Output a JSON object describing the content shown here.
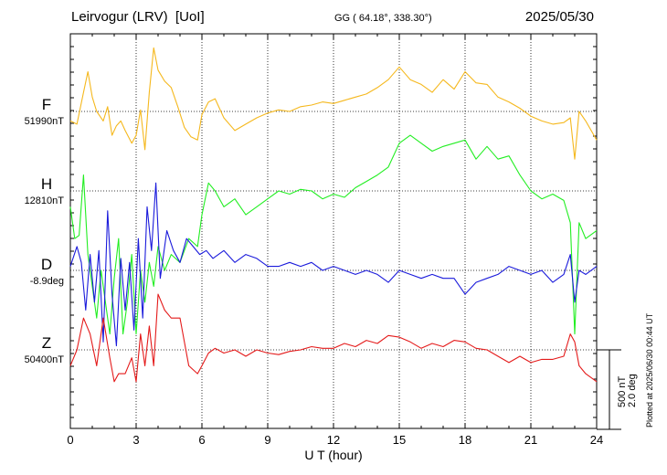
{
  "header": {
    "station": "Leirvogur (LRV)",
    "institute": "[UoI]",
    "coords": "GG ( 64.18°, 338.30°)",
    "date": "2025/05/30"
  },
  "plotted_note": "Plotted at 2025/06/30 00:44 UT",
  "scale_bar": {
    "nt": "500 nT",
    "deg": "2.0 deg"
  },
  "colors": {
    "F": "#f5b81d",
    "H": "#22ee22",
    "D": "#1a1adb",
    "Z": "#e41a1a"
  },
  "chart_data": {
    "type": "line",
    "title": "Leirvogur (LRV)  [UoI]",
    "xlabel": "U T (hour)",
    "xlim": [
      0,
      24
    ],
    "xticks": [
      0,
      3,
      6,
      9,
      12,
      15,
      18,
      21,
      24
    ],
    "tick_labels": [
      "0",
      "3",
      "6",
      "9",
      "12",
      "15",
      "18",
      "21",
      "24"
    ],
    "grid": "dotted vertical every 3 h, dotted baseline per component",
    "series": [
      {
        "name": "F",
        "baseline_label": "51990nT",
        "unit": "nT",
        "x": [
          0,
          0.3,
          0.6,
          0.8,
          1.0,
          1.2,
          1.5,
          1.7,
          1.9,
          2.1,
          2.3,
          2.5,
          2.8,
          3.0,
          3.2,
          3.4,
          3.6,
          3.8,
          4.0,
          4.3,
          4.6,
          4.9,
          5.2,
          5.5,
          5.8,
          6.0,
          6.3,
          6.6,
          7.0,
          7.5,
          8.0,
          8.5,
          9.0,
          9.5,
          10.0,
          10.5,
          11.0,
          11.5,
          12.0,
          12.5,
          13.0,
          13.5,
          14.0,
          14.5,
          15.0,
          15.5,
          16.0,
          16.5,
          17.0,
          17.5,
          18.0,
          18.5,
          19.0,
          19.5,
          20.0,
          20.5,
          21.0,
          21.5,
          22.0,
          22.5,
          22.8,
          23.0,
          23.2,
          23.5,
          24.0
        ],
        "y": [
          -60,
          -80,
          120,
          250,
          90,
          0,
          -60,
          30,
          -150,
          -90,
          -60,
          -120,
          -200,
          -150,
          10,
          -240,
          120,
          400,
          260,
          190,
          150,
          30,
          -100,
          -160,
          -180,
          -20,
          60,
          80,
          -40,
          -120,
          -80,
          -40,
          -10,
          10,
          0,
          30,
          40,
          60,
          50,
          70,
          90,
          110,
          150,
          200,
          280,
          200,
          170,
          120,
          200,
          140,
          250,
          180,
          170,
          90,
          60,
          20,
          -30,
          -60,
          -80,
          -70,
          -40,
          -300,
          0,
          -60,
          -180
        ]
      },
      {
        "name": "H",
        "baseline_label": "12810nT",
        "unit": "nT",
        "x": [
          0,
          0.2,
          0.4,
          0.6,
          0.8,
          1.0,
          1.2,
          1.4,
          1.6,
          1.8,
          2.0,
          2.2,
          2.4,
          2.6,
          2.8,
          3.0,
          3.2,
          3.4,
          3.6,
          3.8,
          4.0,
          4.3,
          4.6,
          5.0,
          5.4,
          5.8,
          6.0,
          6.3,
          6.6,
          7.0,
          7.5,
          8.0,
          8.5,
          9.0,
          9.5,
          10.0,
          10.5,
          11.0,
          11.5,
          12.0,
          12.5,
          13.0,
          13.5,
          14.0,
          14.5,
          15.0,
          15.5,
          16.0,
          16.5,
          17.0,
          17.5,
          18.0,
          18.5,
          19.0,
          19.5,
          20.0,
          20.5,
          21.0,
          21.5,
          22.0,
          22.5,
          22.8,
          23.0,
          23.2,
          23.5,
          24.0
        ],
        "y": [
          -100,
          -300,
          -280,
          100,
          -400,
          -600,
          -800,
          -500,
          -700,
          -900,
          -550,
          -300,
          -900,
          -700,
          -400,
          -900,
          -500,
          -700,
          -450,
          -600,
          -350,
          -500,
          -400,
          -450,
          -300,
          -350,
          -150,
          50,
          0,
          -100,
          -50,
          -150,
          -100,
          -50,
          0,
          -20,
          10,
          0,
          -50,
          -20,
          -40,
          20,
          60,
          100,
          150,
          300,
          350,
          300,
          250,
          280,
          300,
          320,
          200,
          280,
          200,
          220,
          100,
          0,
          -50,
          -20,
          -60,
          -200,
          -900,
          -200,
          -300,
          -250
        ]
      },
      {
        "name": "D",
        "baseline_label": "-8.9deg",
        "unit": "deg",
        "x": [
          0,
          0.3,
          0.5,
          0.7,
          0.9,
          1.1,
          1.3,
          1.5,
          1.7,
          1.9,
          2.1,
          2.3,
          2.5,
          2.7,
          2.9,
          3.1,
          3.3,
          3.5,
          3.7,
          3.9,
          4.1,
          4.4,
          4.7,
          5.0,
          5.3,
          5.6,
          5.9,
          6.2,
          6.5,
          7.0,
          7.5,
          8.0,
          8.5,
          9.0,
          9.5,
          10.0,
          10.5,
          11.0,
          11.5,
          12.0,
          12.5,
          13.0,
          13.5,
          14.0,
          14.5,
          15.0,
          15.5,
          16.0,
          16.5,
          17.0,
          17.5,
          18.0,
          18.5,
          19.0,
          19.5,
          20.0,
          20.5,
          21.0,
          21.5,
          22.0,
          22.5,
          22.8,
          23.0,
          23.2,
          23.5,
          24.0
        ],
        "y": [
          0.1,
          0.6,
          0.2,
          -1.0,
          0.4,
          -0.8,
          0.5,
          -1.8,
          1.5,
          -0.6,
          -1.9,
          0.3,
          -1.0,
          0.2,
          -1.5,
          0.8,
          -1.2,
          1.6,
          0.5,
          2.2,
          -0.2,
          1.0,
          0.5,
          0.2,
          0.8,
          0.6,
          0.4,
          0.5,
          0.3,
          0.5,
          0.2,
          0.4,
          0.3,
          0.1,
          0.1,
          0.2,
          0.1,
          0.2,
          0.0,
          0.1,
          0.0,
          -0.1,
          0.0,
          -0.1,
          -0.3,
          0.0,
          -0.1,
          -0.2,
          -0.1,
          -0.2,
          -0.2,
          -0.6,
          -0.3,
          -0.2,
          -0.1,
          0.1,
          0.0,
          -0.1,
          0.0,
          -0.3,
          -0.1,
          0.4,
          -0.8,
          0.0,
          -0.1,
          0.1
        ]
      },
      {
        "name": "Z",
        "baseline_label": "50400nT",
        "unit": "nT",
        "x": [
          0,
          0.3,
          0.6,
          0.9,
          1.2,
          1.5,
          1.8,
          2.0,
          2.2,
          2.5,
          2.8,
          3.0,
          3.2,
          3.4,
          3.6,
          3.8,
          4.0,
          4.3,
          4.6,
          5.0,
          5.4,
          5.8,
          6.0,
          6.3,
          6.6,
          7.0,
          7.5,
          8.0,
          8.5,
          9.0,
          9.5,
          10.0,
          10.5,
          11.0,
          11.5,
          12.0,
          12.5,
          13.0,
          13.5,
          14.0,
          14.5,
          15.0,
          15.5,
          16.0,
          16.5,
          17.0,
          17.5,
          18.0,
          18.5,
          19.0,
          19.5,
          20.0,
          20.5,
          21.0,
          21.5,
          22.0,
          22.5,
          22.8,
          23.0,
          23.2,
          23.5,
          24.0
        ],
        "y": [
          -100,
          0,
          200,
          100,
          -100,
          200,
          -50,
          -200,
          -150,
          -150,
          -50,
          -200,
          100,
          -100,
          150,
          -100,
          350,
          250,
          200,
          200,
          -100,
          -150,
          -100,
          -20,
          10,
          -20,
          0,
          -40,
          0,
          -20,
          -30,
          -10,
          0,
          20,
          10,
          10,
          40,
          20,
          60,
          40,
          90,
          80,
          50,
          10,
          40,
          20,
          60,
          50,
          10,
          0,
          -40,
          -80,
          -40,
          -80,
          -60,
          -60,
          -40,
          100,
          50,
          -100,
          -150,
          -200
        ]
      }
    ]
  }
}
